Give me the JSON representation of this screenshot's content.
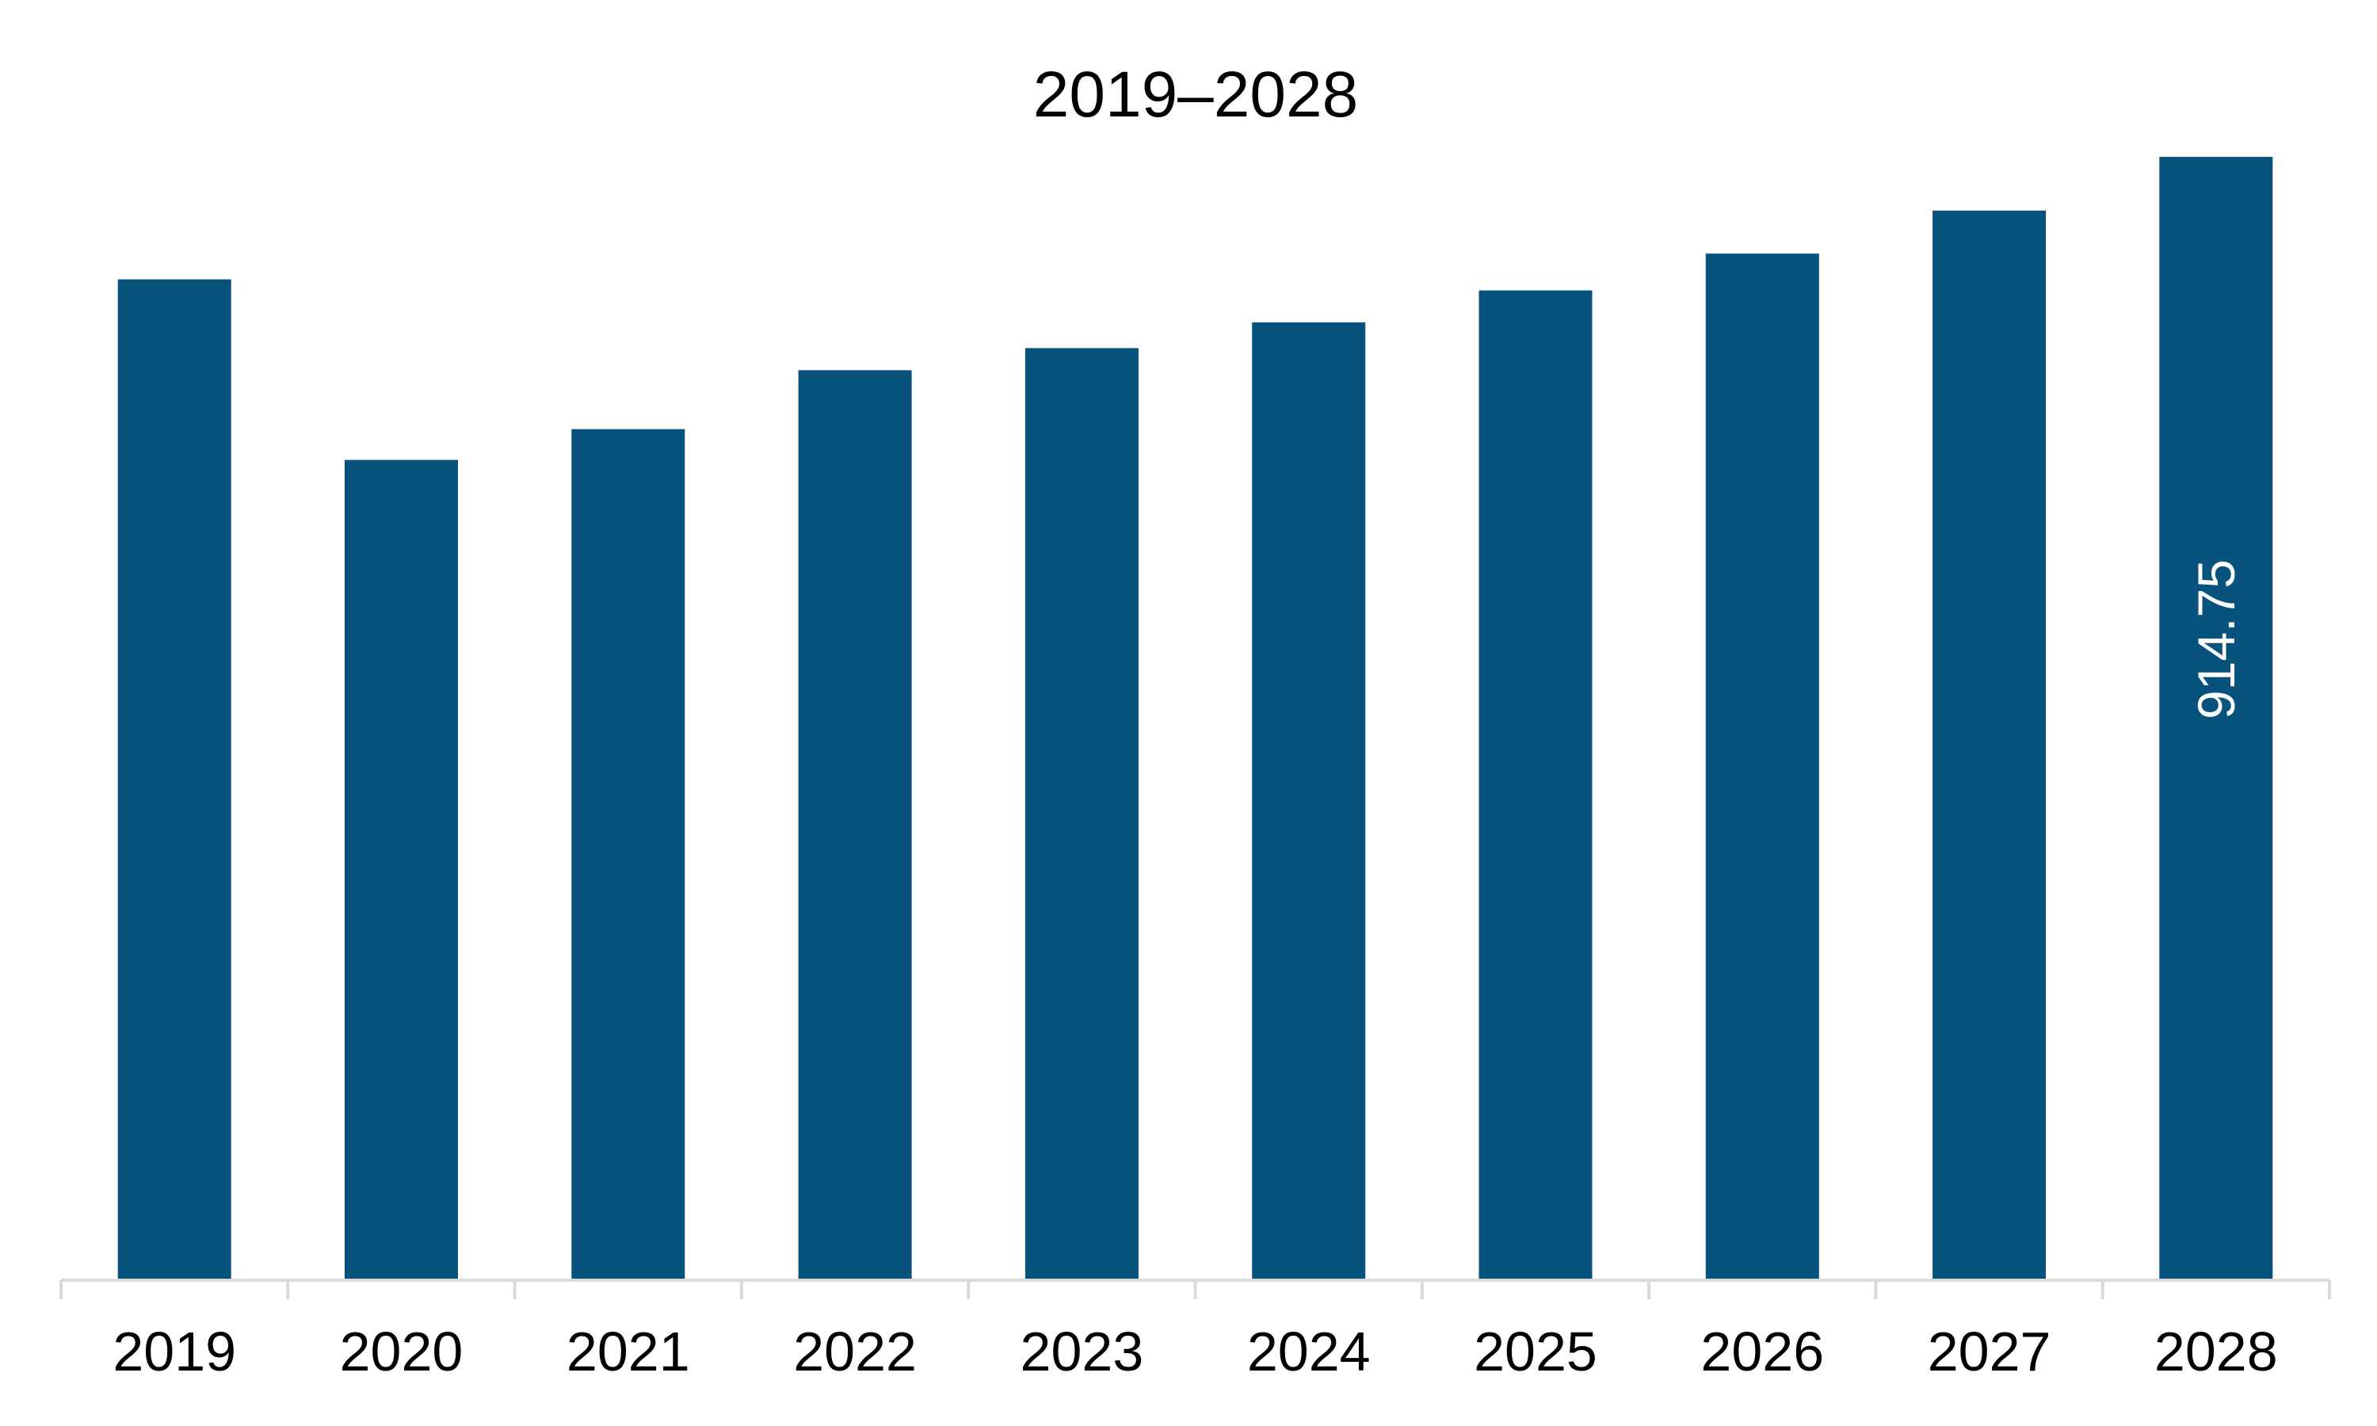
{
  "chart_data": {
    "type": "bar",
    "title": "2019–2028",
    "xlabel": "",
    "ylabel": "",
    "categories": [
      "2019",
      "2020",
      "2021",
      "2022",
      "2023",
      "2024",
      "2025",
      "2026",
      "2027",
      "2028"
    ],
    "values": [
      815,
      668,
      693,
      741,
      759,
      780,
      806,
      836,
      871,
      914.75
    ],
    "data_labels": [
      {
        "category": "2028",
        "text": "914.75"
      }
    ],
    "ylim": [
      0,
      914.75
    ],
    "grid": false,
    "legend": "none",
    "colors": {
      "bar": "#08527E",
      "axis": "#D9D9D9",
      "text": "#000000",
      "data_label": "#FFFFFF"
    }
  }
}
